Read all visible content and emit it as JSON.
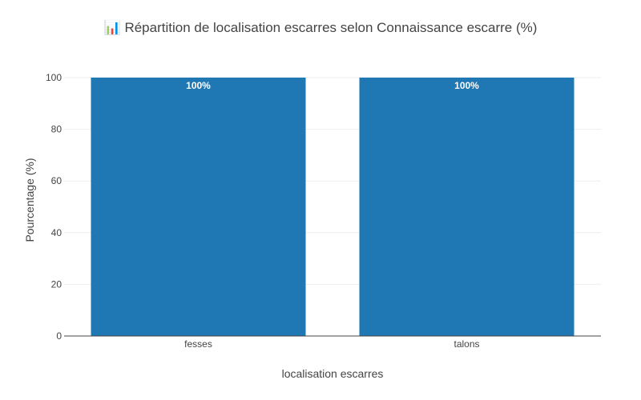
{
  "chart_data": {
    "type": "bar",
    "title": "📊 Répartition de localisation escarres selon Connaissance escarre (%)",
    "xlabel": "localisation escarres",
    "ylabel": "Pourcentage (%)",
    "categories": [
      "fesses",
      "talons"
    ],
    "values": [
      100,
      100
    ],
    "data_labels": [
      "100%",
      "100%"
    ],
    "ylim": [
      0,
      100
    ],
    "yticks": [
      0,
      20,
      40,
      60,
      80,
      100
    ],
    "ytick_labels": [
      "0",
      "20",
      "40",
      "60",
      "80",
      "100"
    ],
    "grid": true,
    "legend": "none",
    "bar_color": "#1f77b4"
  }
}
